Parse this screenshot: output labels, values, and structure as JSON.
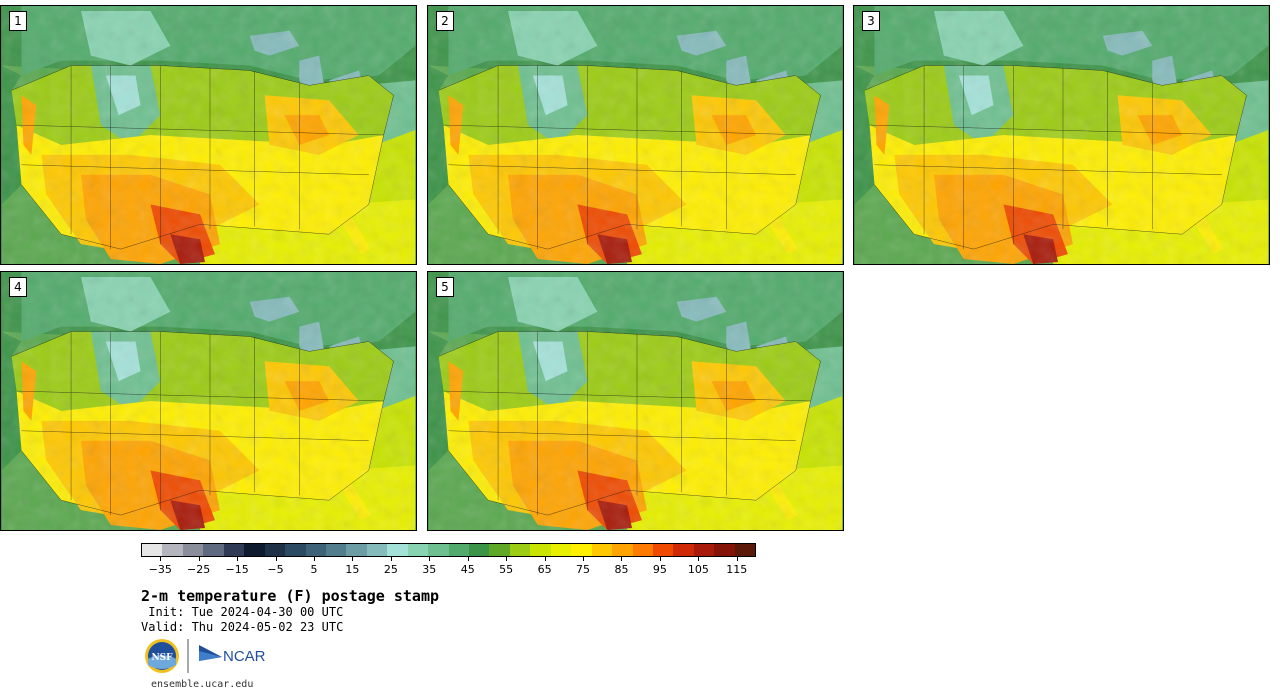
{
  "panels": [
    {
      "label": "1"
    },
    {
      "label": "2"
    },
    {
      "label": "3"
    },
    {
      "label": "4"
    },
    {
      "label": "5"
    }
  ],
  "colorbar": {
    "colors": [
      "#e6e6e6",
      "#b4b6bd",
      "#8a8e9b",
      "#5f6a80",
      "#2f3a56",
      "#0e1a2e",
      "#1e3147",
      "#2d4a63",
      "#3e6278",
      "#527d8c",
      "#6c9da5",
      "#86bbbc",
      "#a4e2d8",
      "#88d3b1",
      "#6ec090",
      "#52ab6c",
      "#3c9448",
      "#5fa828",
      "#9ccc14",
      "#c9e400",
      "#e8f000",
      "#ffef00",
      "#ffc800",
      "#ffa400",
      "#ff7a00",
      "#ef4a00",
      "#cf2a08",
      "#a81a0a",
      "#841408",
      "#5c1808"
    ],
    "tick_values": [
      -35,
      -25,
      -15,
      -5,
      5,
      15,
      25,
      35,
      45,
      55,
      65,
      75,
      85,
      95,
      105,
      115
    ],
    "range": [
      -40,
      120
    ]
  },
  "title": "2-m temperature (F) postage stamp",
  "init_line": " Init: Tue 2024-04-30 00 UTC",
  "valid_line": "Valid: Thu 2024-05-02 23 UTC",
  "logos": {
    "nsf_text": "NSF",
    "ncar_text": "NCAR"
  },
  "url": "ensemble.ucar.edu"
}
